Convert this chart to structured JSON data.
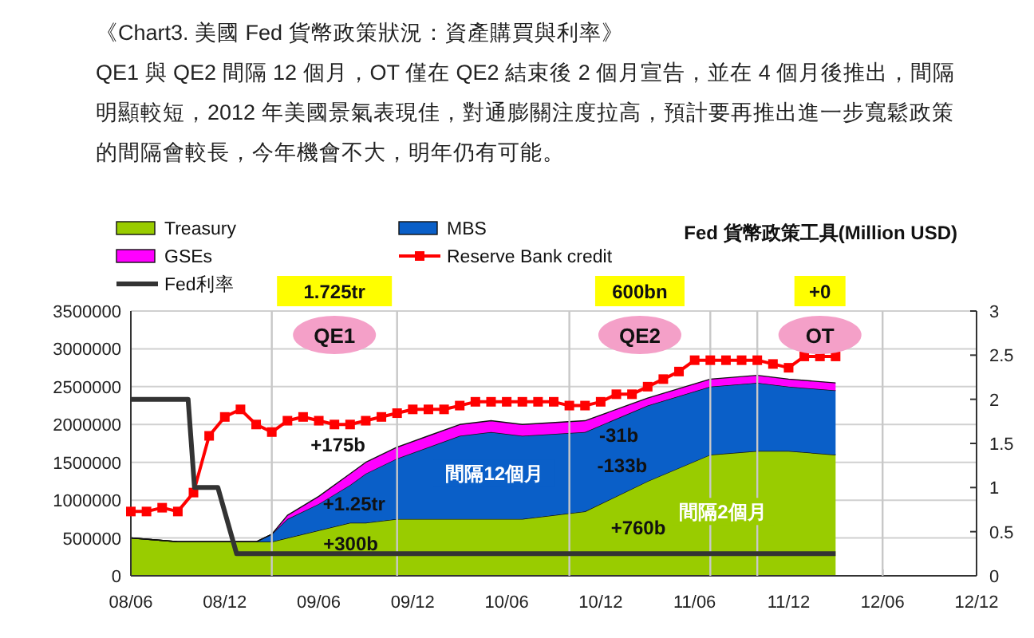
{
  "chart_data": {
    "type": "area",
    "title": "《Chart3. 美國 Fed 貨幣政策狀況：資產購買與利率》",
    "subtitle": "QE1 與 QE2 間隔 12 個月，OT 僅在 QE2 結束後 2 個月宣告，並在 4 個月後推出，間隔明顯較短，2012 年美國景氣表現佳，對通膨關注度拉高，預計要再推出進一步寬鬆政策的間隔會較長，今年機會不大，明年仍有可能。",
    "legend": "top",
    "grid": "y",
    "stacked": true,
    "x": [
      "2008-06",
      "2008-09",
      "2009-02",
      "2009-03",
      "2009-04",
      "2009-06",
      "2009-08",
      "2009-09",
      "2009-11",
      "2010-01",
      "2010-03",
      "2010-05",
      "2010-07",
      "2010-11",
      "2011-03",
      "2011-07",
      "2011-10",
      "2011-12",
      "2012-03"
    ],
    "xlim": [
      "2008-06",
      "2012-12"
    ],
    "xticks": [
      {
        "value": "2008-06",
        "label": "08/06"
      },
      {
        "value": "2008-12",
        "label": "08/12"
      },
      {
        "value": "2009-06",
        "label": "09/06"
      },
      {
        "value": "2009-12",
        "label": "09/12"
      },
      {
        "value": "2010-06",
        "label": "10/06"
      },
      {
        "value": "2010-12",
        "label": "10/12"
      },
      {
        "value": "2011-06",
        "label": "11/06"
      },
      {
        "value": "2011-12",
        "label": "11/12"
      },
      {
        "value": "2012-06",
        "label": "12/06"
      },
      {
        "value": "2012-12",
        "label": "12/12"
      }
    ],
    "ylim": [
      0,
      3500000
    ],
    "yticks": [
      0,
      500000,
      1000000,
      1500000,
      2000000,
      2500000,
      3000000,
      3500000
    ],
    "y2lim": [
      0,
      3
    ],
    "y2ticks": [
      0,
      0.5,
      1,
      1.5,
      2,
      2.5,
      3
    ],
    "series": [
      {
        "name": "Treasury",
        "color": "#99cc00",
        "values": [
          500000,
          450000,
          450000,
          450000,
          500000,
          600000,
          700000,
          700000,
          750000,
          750000,
          750000,
          750000,
          750000,
          850000,
          1250000,
          1600000,
          1650000,
          1650000,
          1600000
        ]
      },
      {
        "name": "MBS",
        "color": "#0a5fc8",
        "values": [
          0,
          0,
          0,
          100000,
          250000,
          350000,
          500000,
          650000,
          800000,
          950000,
          1100000,
          1150000,
          1100000,
          1050000,
          1000000,
          900000,
          900000,
          850000,
          850000
        ]
      },
      {
        "name": "GSEs",
        "color": "#ff00ff",
        "values": [
          0,
          0,
          0,
          0,
          50000,
          100000,
          150000,
          150000,
          150000,
          150000,
          150000,
          150000,
          150000,
          150000,
          100000,
          100000,
          100000,
          100000,
          100000
        ]
      },
      {
        "name": "Reserve Bank credit",
        "color": "#ff0000",
        "type": "line",
        "marker": "square",
        "x": [
          "2008-06",
          "2008-07",
          "2008-08",
          "2008-09",
          "2008-10",
          "2008-11",
          "2008-12",
          "2009-01",
          "2009-02",
          "2009-03",
          "2009-04",
          "2009-05",
          "2009-06",
          "2009-07",
          "2009-08",
          "2009-09",
          "2009-10",
          "2009-11",
          "2009-12",
          "2010-01",
          "2010-02",
          "2010-03",
          "2010-04",
          "2010-05",
          "2010-06",
          "2010-07",
          "2010-08",
          "2010-09",
          "2010-10",
          "2010-11",
          "2010-12",
          "2011-01",
          "2011-02",
          "2011-03",
          "2011-04",
          "2011-05",
          "2011-06",
          "2011-07",
          "2011-08",
          "2011-09",
          "2011-10",
          "2011-11",
          "2011-12",
          "2012-01",
          "2012-02",
          "2012-03"
        ],
        "values": [
          850000,
          850000,
          900000,
          850000,
          1100000,
          1850000,
          2100000,
          2200000,
          2000000,
          1900000,
          2050000,
          2100000,
          2050000,
          2000000,
          2000000,
          2050000,
          2100000,
          2150000,
          2200000,
          2200000,
          2200000,
          2250000,
          2300000,
          2300000,
          2300000,
          2300000,
          2300000,
          2300000,
          2250000,
          2250000,
          2300000,
          2400000,
          2400000,
          2500000,
          2600000,
          2700000,
          2850000,
          2850000,
          2850000,
          2850000,
          2850000,
          2800000,
          2750000,
          2900000,
          2900000,
          2900000
        ]
      },
      {
        "name": "Fed利率",
        "color": "#333333",
        "type": "line",
        "axis": "y2",
        "x": [
          "2008-06",
          "2008-09-21",
          "2008-10-03",
          "2008-11-18",
          "2008-12-24",
          "2012-03"
        ],
        "values": [
          2,
          2,
          1,
          1,
          0.25,
          0.25
        ]
      }
    ],
    "ref_lines": [
      {
        "axis": "x",
        "value": "2009-03",
        "color": "#c8c8c8"
      },
      {
        "axis": "x",
        "value": "2009-11",
        "color": "#c8c8c8"
      },
      {
        "axis": "x",
        "value": "2010-10",
        "color": "#c8c8c8"
      },
      {
        "axis": "x",
        "value": "2011-07",
        "color": "#c8c8c8"
      },
      {
        "axis": "x",
        "value": "2011-10",
        "color": "#c8c8c8"
      },
      {
        "axis": "x",
        "value": "2012-06",
        "color": "#c8c8c8"
      }
    ],
    "annotations": [
      "Fed 貨幣政策工具(Million USD)",
      "1.725tr",
      "600bn",
      "+0",
      "QE1",
      "QE2",
      "OT",
      "間隔12個月",
      "間隔2個月",
      "+175b",
      "+1.25tr",
      "+300b",
      "-31b",
      "-133b",
      "+760b"
    ]
  }
}
